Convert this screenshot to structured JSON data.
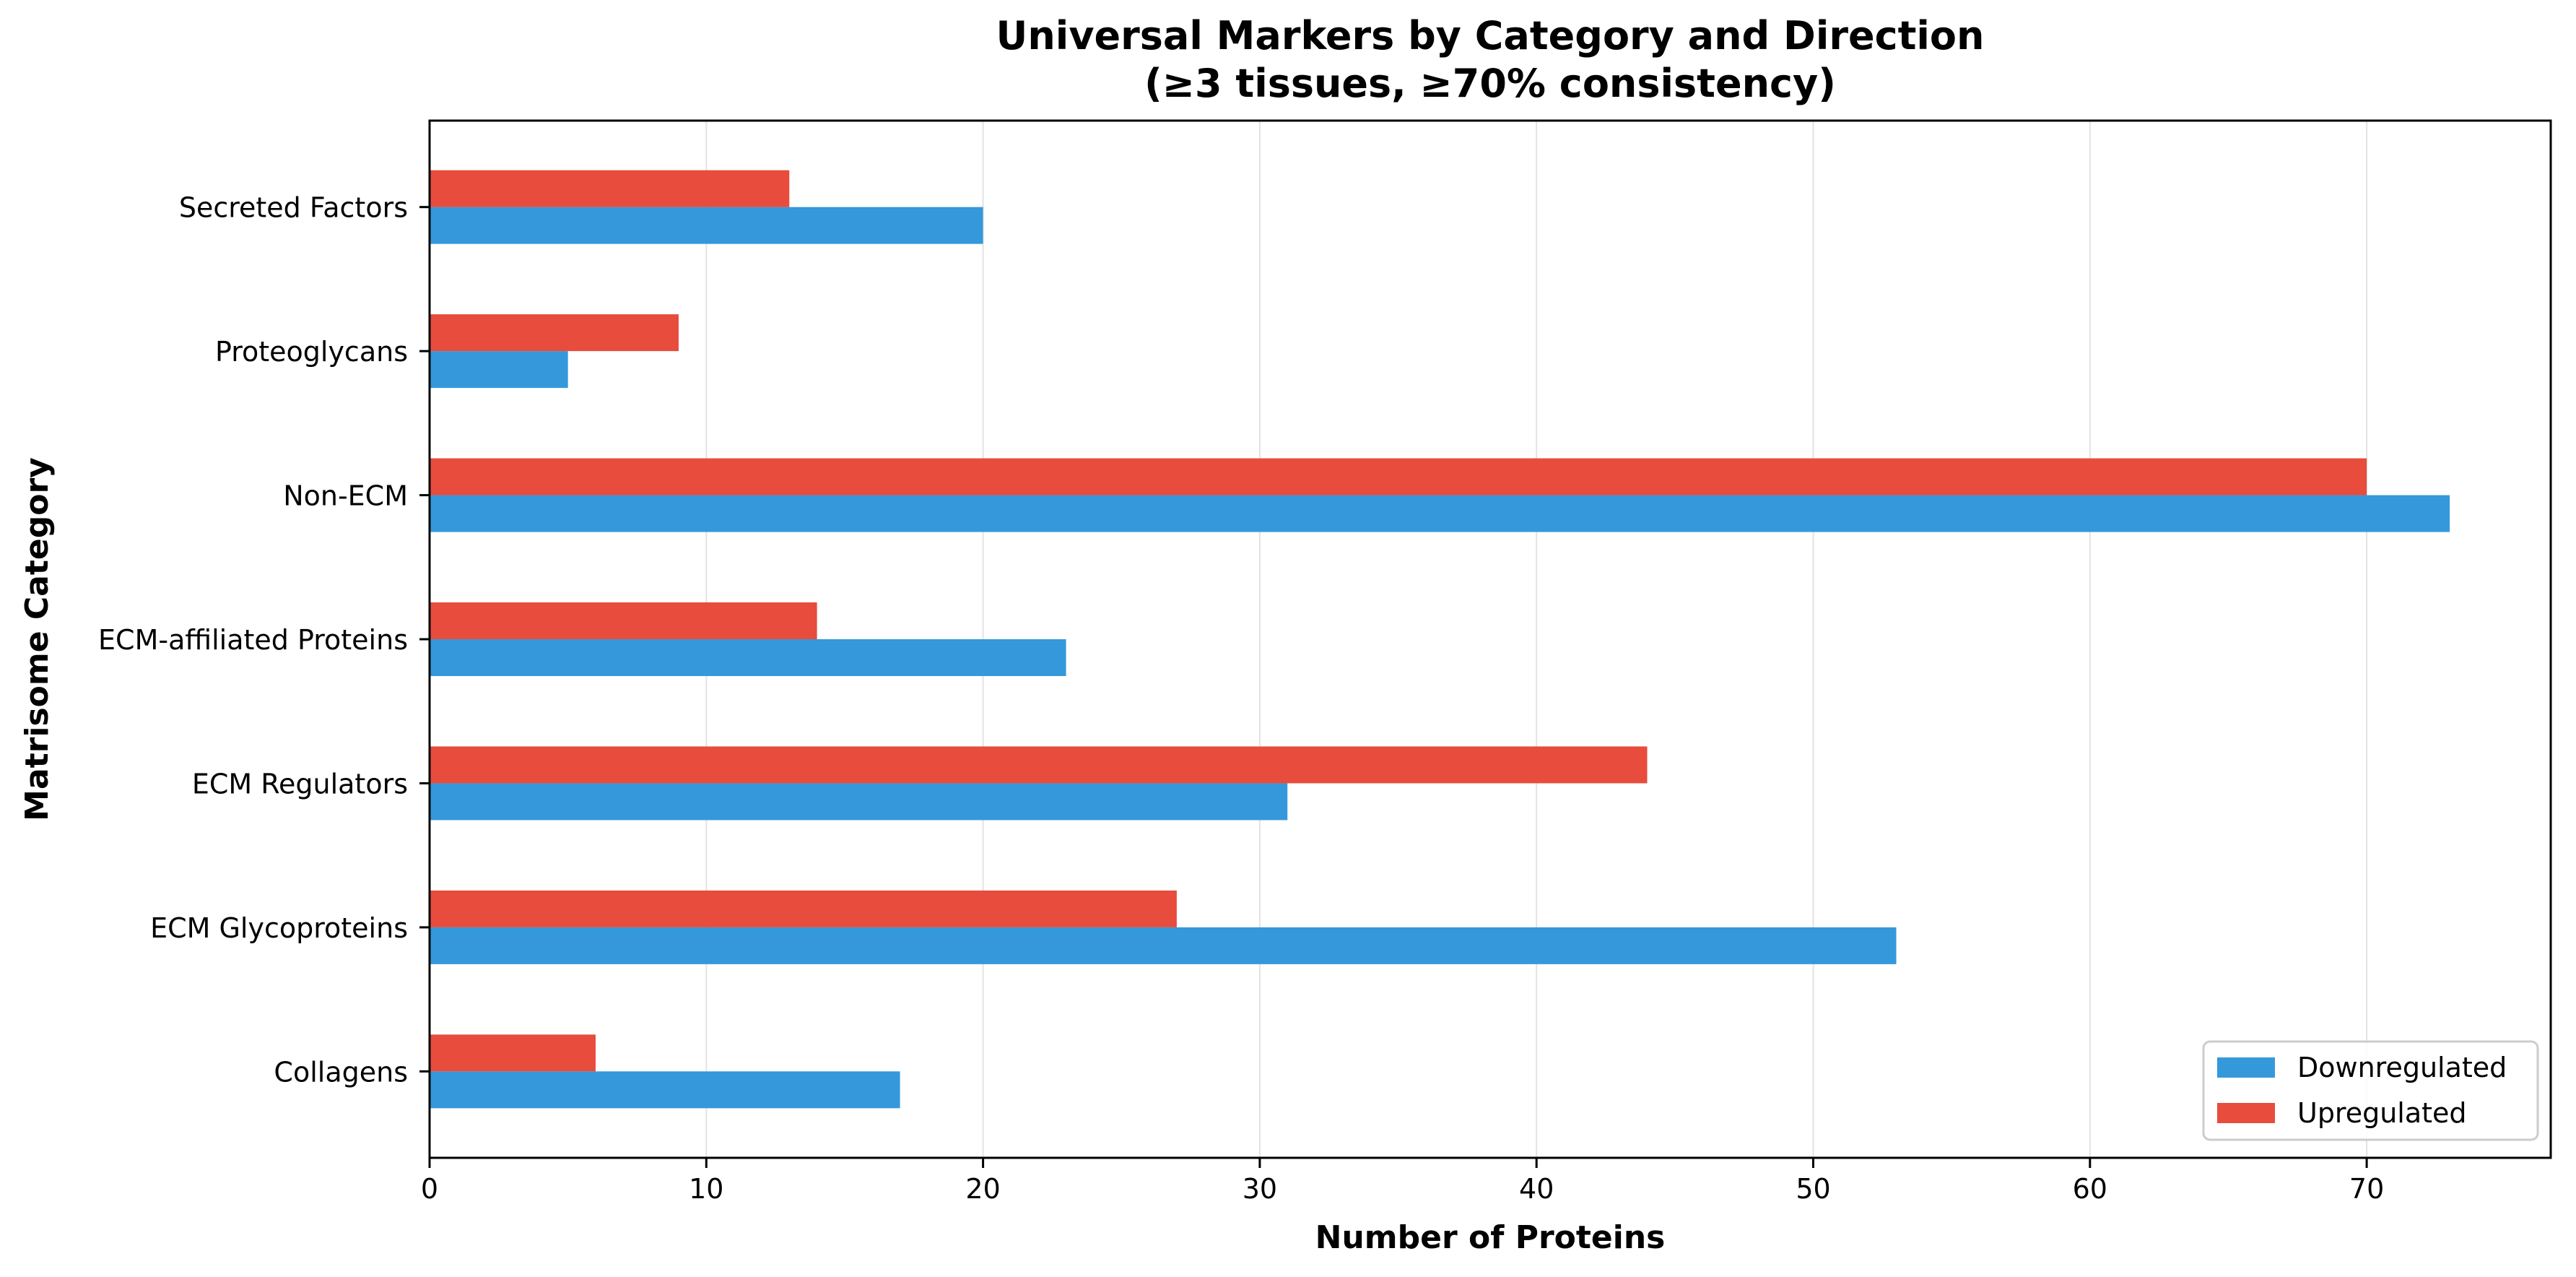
{
  "chart_data": {
    "type": "bar",
    "orientation": "horizontal",
    "title": "Universal Markers by Category and Direction",
    "subtitle": "(≥3 tissues, ≥70% consistency)",
    "xlabel": "Number of Proteins",
    "ylabel": "Matrisome Category",
    "categories": [
      "Collagens",
      "ECM Glycoproteins",
      "ECM Regulators",
      "ECM-affiliated Proteins",
      "Non-ECM",
      "Proteoglycans",
      "Secreted Factors"
    ],
    "series": [
      {
        "name": "Downregulated",
        "color": "#3498db",
        "values": [
          17,
          53,
          31,
          23,
          73,
          5,
          20
        ]
      },
      {
        "name": "Upregulated",
        "color": "#e74c3c",
        "values": [
          6,
          27,
          44,
          14,
          70,
          9,
          13
        ]
      }
    ],
    "xlim": [
      0,
      76.65
    ],
    "xticks": [
      0,
      10,
      20,
      30,
      40,
      50,
      60,
      70
    ],
    "grid": "vertical",
    "legend_position": "bottom-right"
  }
}
